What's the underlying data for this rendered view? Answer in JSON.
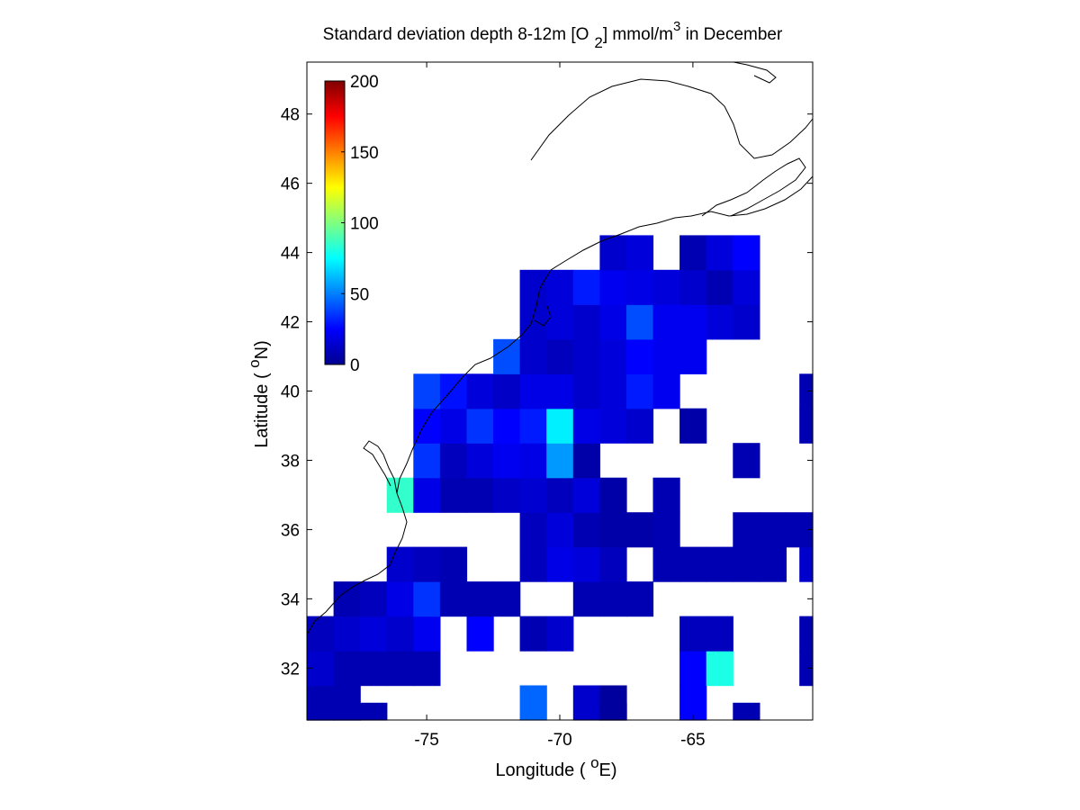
{
  "chart_data": {
    "type": "heatmap",
    "title": "Standard deviation depth 8-12m [O 2] mmol/m3 in December",
    "title_parts": {
      "main": "Standard deviation depth 8-12m [O",
      "subscript": "2",
      "after_sub": "] mmol/m",
      "superscript": "3",
      "tail": " in December"
    },
    "xlabel": "Longitude ( oE)",
    "xlabel_parts": {
      "pre": "Longitude ( ",
      "sup": "o",
      "post": "E)"
    },
    "ylabel": "Latitude ( oN)",
    "ylabel_parts": {
      "pre": "Latitude ( ",
      "sup": "o",
      "post": "N)"
    },
    "xlim": [
      -79.5,
      -60.5
    ],
    "ylim": [
      30.5,
      49.5
    ],
    "xticks": [
      -75,
      -70,
      -65
    ],
    "yticks": [
      32,
      34,
      36,
      38,
      40,
      42,
      44,
      46,
      48
    ],
    "grid": false,
    "cell_size_deg": 1,
    "colormap": "jet",
    "colorbar": {
      "range": [
        0,
        200
      ],
      "ticks": [
        0,
        50,
        100,
        150,
        200
      ],
      "placement": "inside upper-left"
    },
    "cells": [
      {
        "lon": -79,
        "lat": 31,
        "value": 10
      },
      {
        "lon": -78,
        "lat": 31,
        "value": 10
      },
      {
        "lon": -79,
        "lat": 30.5,
        "value": 10
      },
      {
        "lon": -78,
        "lat": 30.5,
        "value": 10
      },
      {
        "lon": -77,
        "lat": 30.5,
        "value": 10
      },
      {
        "lon": -71,
        "lat": 31,
        "value": 45
      },
      {
        "lon": -69,
        "lat": 31,
        "value": 15
      },
      {
        "lon": -68,
        "lat": 31,
        "value": 6
      },
      {
        "lon": -68,
        "lat": 30.5,
        "value": 6
      },
      {
        "lon": -65,
        "lat": 31,
        "value": 25
      },
      {
        "lon": -63,
        "lat": 30.5,
        "value": 10
      },
      {
        "lon": -79,
        "lat": 32,
        "value": 15
      },
      {
        "lon": -78,
        "lat": 32,
        "value": 10
      },
      {
        "lon": -77,
        "lat": 32,
        "value": 10
      },
      {
        "lon": -76,
        "lat": 32,
        "value": 10
      },
      {
        "lon": -75,
        "lat": 32,
        "value": 10
      },
      {
        "lon": -65,
        "lat": 32,
        "value": 25
      },
      {
        "lon": -64,
        "lat": 32,
        "value": 80
      },
      {
        "lon": -60.5,
        "lat": 32,
        "value": 10
      },
      {
        "lon": -79,
        "lat": 33,
        "value": 12
      },
      {
        "lon": -78,
        "lat": 33,
        "value": 15
      },
      {
        "lon": -77,
        "lat": 33,
        "value": 18
      },
      {
        "lon": -76,
        "lat": 33,
        "value": 15
      },
      {
        "lon": -75,
        "lat": 33,
        "value": 22
      },
      {
        "lon": -73,
        "lat": 33,
        "value": 25
      },
      {
        "lon": -71,
        "lat": 33,
        "value": 10
      },
      {
        "lon": -70,
        "lat": 33,
        "value": 15
      },
      {
        "lon": -65,
        "lat": 33,
        "value": 12
      },
      {
        "lon": -64,
        "lat": 33,
        "value": 12
      },
      {
        "lon": -60.5,
        "lat": 33,
        "value": 10
      },
      {
        "lon": -78,
        "lat": 34,
        "value": 10
      },
      {
        "lon": -77,
        "lat": 34,
        "value": 12
      },
      {
        "lon": -76,
        "lat": 34,
        "value": 20
      },
      {
        "lon": -75,
        "lat": 34,
        "value": 35
      },
      {
        "lon": -74,
        "lat": 34,
        "value": 10
      },
      {
        "lon": -73,
        "lat": 34,
        "value": 10
      },
      {
        "lon": -72,
        "lat": 34,
        "value": 10
      },
      {
        "lon": -69,
        "lat": 34,
        "value": 10
      },
      {
        "lon": -68,
        "lat": 34,
        "value": 10
      },
      {
        "lon": -67,
        "lat": 34,
        "value": 10
      },
      {
        "lon": -76,
        "lat": 35,
        "value": 15
      },
      {
        "lon": -75,
        "lat": 35,
        "value": 12
      },
      {
        "lon": -74,
        "lat": 35,
        "value": 10
      },
      {
        "lon": -71,
        "lat": 35,
        "value": 12
      },
      {
        "lon": -70,
        "lat": 35,
        "value": 20
      },
      {
        "lon": -69,
        "lat": 35,
        "value": 18
      },
      {
        "lon": -68,
        "lat": 35,
        "value": 12
      },
      {
        "lon": -66,
        "lat": 35,
        "value": 10
      },
      {
        "lon": -65,
        "lat": 35,
        "value": 10
      },
      {
        "lon": -64,
        "lat": 35,
        "value": 10
      },
      {
        "lon": -63,
        "lat": 35,
        "value": 10
      },
      {
        "lon": -62,
        "lat": 35,
        "value": 10
      },
      {
        "lon": -60.5,
        "lat": 35,
        "value": 15
      },
      {
        "lon": -71,
        "lat": 36,
        "value": 12
      },
      {
        "lon": -70,
        "lat": 36,
        "value": 18
      },
      {
        "lon": -69,
        "lat": 36,
        "value": 10
      },
      {
        "lon": -68,
        "lat": 36,
        "value": 8
      },
      {
        "lon": -67,
        "lat": 36,
        "value": 8
      },
      {
        "lon": -66,
        "lat": 36,
        "value": 10
      },
      {
        "lon": -63,
        "lat": 36,
        "value": 10
      },
      {
        "lon": -62,
        "lat": 36,
        "value": 10
      },
      {
        "lon": -61,
        "lat": 36,
        "value": 10
      },
      {
        "lon": -76,
        "lat": 37,
        "value": 85
      },
      {
        "lon": -75,
        "lat": 37,
        "value": 20
      },
      {
        "lon": -74,
        "lat": 37,
        "value": 10
      },
      {
        "lon": -73,
        "lat": 37,
        "value": 10
      },
      {
        "lon": -72,
        "lat": 37,
        "value": 14
      },
      {
        "lon": -71,
        "lat": 37,
        "value": 16
      },
      {
        "lon": -70,
        "lat": 37,
        "value": 12
      },
      {
        "lon": -69,
        "lat": 37,
        "value": 18
      },
      {
        "lon": -68,
        "lat": 37,
        "value": 8
      },
      {
        "lon": -66,
        "lat": 37,
        "value": 10
      },
      {
        "lon": -75,
        "lat": 38,
        "value": 35
      },
      {
        "lon": -74,
        "lat": 38,
        "value": 12
      },
      {
        "lon": -73,
        "lat": 38,
        "value": 18
      },
      {
        "lon": -72,
        "lat": 38,
        "value": 22
      },
      {
        "lon": -71,
        "lat": 38,
        "value": 20
      },
      {
        "lon": -70,
        "lat": 38,
        "value": 55
      },
      {
        "lon": -69,
        "lat": 38,
        "value": 8
      },
      {
        "lon": -63,
        "lat": 38,
        "value": 10
      },
      {
        "lon": -75,
        "lat": 39,
        "value": 25
      },
      {
        "lon": -74,
        "lat": 39,
        "value": 20
      },
      {
        "lon": -73,
        "lat": 39,
        "value": 35
      },
      {
        "lon": -72,
        "lat": 39,
        "value": 25
      },
      {
        "lon": -71,
        "lat": 39,
        "value": 30
      },
      {
        "lon": -70,
        "lat": 39,
        "value": 72
      },
      {
        "lon": -69,
        "lat": 39,
        "value": 20
      },
      {
        "lon": -68,
        "lat": 39,
        "value": 18
      },
      {
        "lon": -67,
        "lat": 39,
        "value": 15
      },
      {
        "lon": -65,
        "lat": 39,
        "value": 8
      },
      {
        "lon": -60.5,
        "lat": 39,
        "value": 10
      },
      {
        "lon": -75,
        "lat": 40,
        "value": 38
      },
      {
        "lon": -74,
        "lat": 40,
        "value": 28
      },
      {
        "lon": -73,
        "lat": 40,
        "value": 18
      },
      {
        "lon": -72,
        "lat": 40,
        "value": 14
      },
      {
        "lon": -71,
        "lat": 40,
        "value": 20
      },
      {
        "lon": -70,
        "lat": 40,
        "value": 20
      },
      {
        "lon": -69,
        "lat": 40,
        "value": 15
      },
      {
        "lon": -68,
        "lat": 40,
        "value": 18
      },
      {
        "lon": -67,
        "lat": 40,
        "value": 30
      },
      {
        "lon": -66,
        "lat": 40,
        "value": 22
      },
      {
        "lon": -60.5,
        "lat": 40,
        "value": 10
      },
      {
        "lon": -72,
        "lat": 41,
        "value": 40
      },
      {
        "lon": -71,
        "lat": 41,
        "value": 15
      },
      {
        "lon": -70,
        "lat": 41,
        "value": 12
      },
      {
        "lon": -69,
        "lat": 41,
        "value": 15
      },
      {
        "lon": -68,
        "lat": 41,
        "value": 18
      },
      {
        "lon": -67,
        "lat": 41,
        "value": 25
      },
      {
        "lon": -66,
        "lat": 41,
        "value": 22
      },
      {
        "lon": -65,
        "lat": 41,
        "value": 22
      },
      {
        "lon": -71,
        "lat": 42,
        "value": 15
      },
      {
        "lon": -70,
        "lat": 42,
        "value": 18
      },
      {
        "lon": -69,
        "lat": 42,
        "value": 15
      },
      {
        "lon": -68,
        "lat": 42,
        "value": 20
      },
      {
        "lon": -67,
        "lat": 42,
        "value": 40
      },
      {
        "lon": -66,
        "lat": 42,
        "value": 22
      },
      {
        "lon": -65,
        "lat": 42,
        "value": 22
      },
      {
        "lon": -64,
        "lat": 42,
        "value": 18
      },
      {
        "lon": -63,
        "lat": 42,
        "value": 15
      },
      {
        "lon": -71,
        "lat": 43,
        "value": 15
      },
      {
        "lon": -70,
        "lat": 43,
        "value": 18
      },
      {
        "lon": -69,
        "lat": 43,
        "value": 30
      },
      {
        "lon": -68,
        "lat": 43,
        "value": 22
      },
      {
        "lon": -67,
        "lat": 43,
        "value": 20
      },
      {
        "lon": -66,
        "lat": 43,
        "value": 18
      },
      {
        "lon": -65,
        "lat": 43,
        "value": 15
      },
      {
        "lon": -64,
        "lat": 43,
        "value": 10
      },
      {
        "lon": -63,
        "lat": 43,
        "value": 18
      },
      {
        "lon": -68,
        "lat": 44,
        "value": 15
      },
      {
        "lon": -67,
        "lat": 44,
        "value": 18
      },
      {
        "lon": -65,
        "lat": 44,
        "value": 10
      },
      {
        "lon": -64,
        "lat": 44,
        "value": 18
      },
      {
        "lon": -63,
        "lat": 44,
        "value": 25
      }
    ]
  }
}
